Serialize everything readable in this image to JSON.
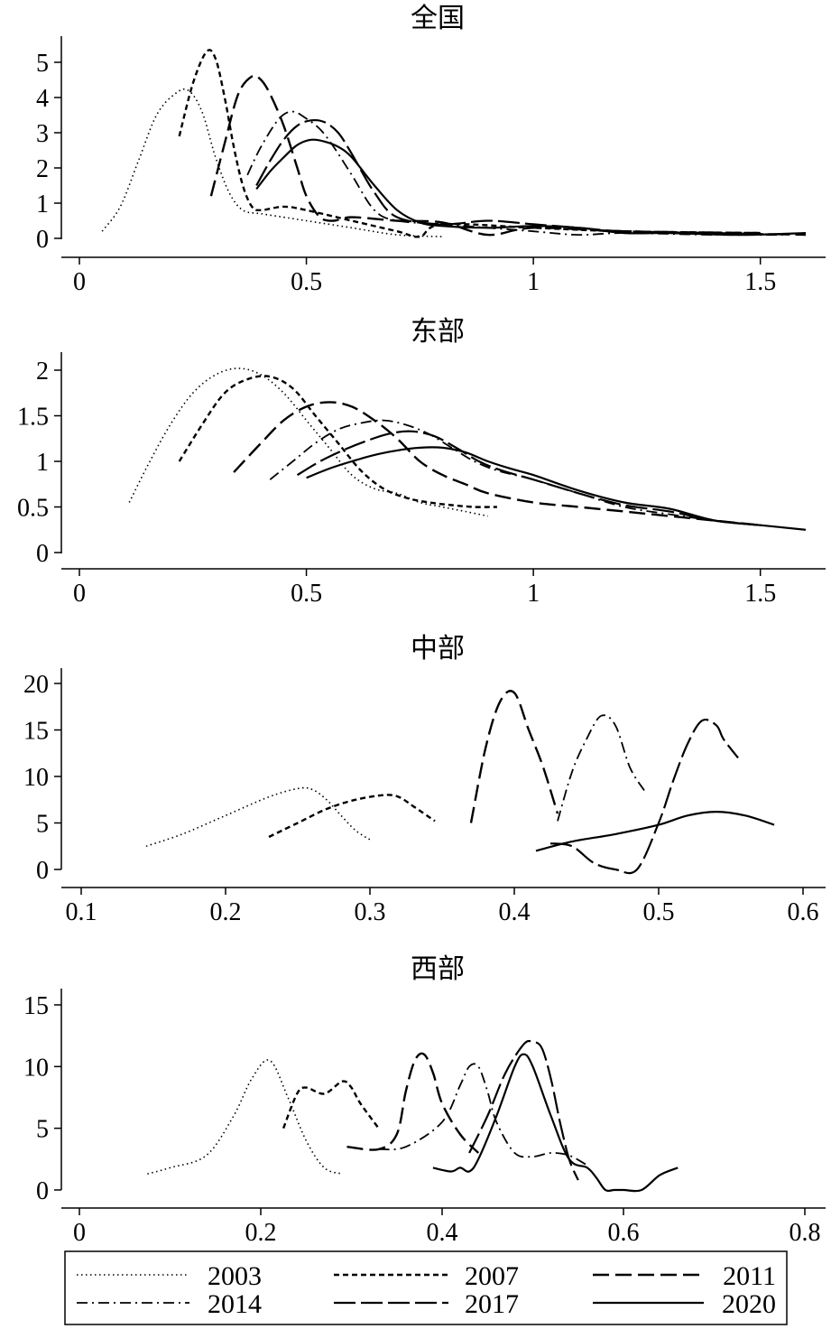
{
  "legend": {
    "entries": [
      "2003",
      "2007",
      "2011",
      "2014",
      "2017",
      "2020"
    ],
    "placement": "bottom"
  },
  "chart_data": [
    {
      "type": "line",
      "title": "全国",
      "xlim": [
        0,
        1.6
      ],
      "ylim": [
        0,
        5.5
      ],
      "xticks": [
        0,
        0.5,
        1,
        1.5
      ],
      "xtick_labels": [
        "0",
        "0.5",
        "1",
        "1.5"
      ],
      "yticks": [
        0,
        1,
        2,
        3,
        4,
        5
      ],
      "ytick_labels": [
        "0",
        "1",
        "2",
        "3",
        "4",
        "5"
      ],
      "series": [
        {
          "name": "2003",
          "x": [
            0.05,
            0.09,
            0.13,
            0.17,
            0.21,
            0.24,
            0.27,
            0.3,
            0.33,
            0.36,
            0.4,
            0.45,
            0.5,
            0.6,
            0.7,
            0.8
          ],
          "y": [
            0.2,
            0.9,
            2.2,
            3.5,
            4.1,
            4.2,
            3.6,
            2.3,
            1.3,
            0.8,
            0.7,
            0.6,
            0.5,
            0.3,
            0.1,
            0.05
          ]
        },
        {
          "name": "2007",
          "x": [
            0.22,
            0.25,
            0.28,
            0.3,
            0.32,
            0.34,
            0.36,
            0.38,
            0.4,
            0.45,
            0.5,
            0.6,
            0.7,
            0.75,
            0.8,
            1.0,
            1.2,
            1.5
          ],
          "y": [
            2.9,
            4.4,
            5.3,
            5.1,
            4.0,
            2.6,
            1.5,
            0.9,
            0.8,
            0.9,
            0.8,
            0.5,
            0.2,
            0.05,
            0.4,
            0.3,
            0.2,
            0.15
          ]
        },
        {
          "name": "2011",
          "x": [
            0.29,
            0.32,
            0.35,
            0.38,
            0.4,
            0.42,
            0.45,
            0.48,
            0.5,
            0.53,
            0.56,
            0.6,
            0.7,
            0.8,
            0.9,
            1.0,
            1.2,
            1.5
          ],
          "y": [
            1.2,
            2.7,
            4.1,
            4.6,
            4.5,
            4.1,
            3.2,
            2.0,
            1.2,
            0.6,
            0.5,
            0.6,
            0.5,
            0.45,
            0.1,
            0.3,
            0.2,
            0.15
          ]
        },
        {
          "name": "2014",
          "x": [
            0.37,
            0.4,
            0.44,
            0.47,
            0.5,
            0.53,
            0.56,
            0.6,
            0.65,
            0.7,
            0.8,
            0.9,
            1.0,
            1.1,
            1.2,
            1.4,
            1.55
          ],
          "y": [
            1.8,
            2.6,
            3.4,
            3.6,
            3.4,
            3.1,
            2.6,
            1.8,
            0.8,
            0.5,
            0.4,
            0.3,
            0.2,
            0.1,
            0.15,
            0.1,
            0.1
          ]
        },
        {
          "name": "2017",
          "x": [
            0.39,
            0.42,
            0.45,
            0.48,
            0.51,
            0.54,
            0.57,
            0.6,
            0.65,
            0.7,
            0.8,
            0.9,
            1.0,
            1.1,
            1.2,
            1.4,
            1.6
          ],
          "y": [
            1.5,
            2.2,
            2.8,
            3.2,
            3.35,
            3.3,
            3.0,
            2.4,
            1.3,
            0.6,
            0.4,
            0.5,
            0.4,
            0.3,
            0.2,
            0.15,
            0.1
          ]
        },
        {
          "name": "2020",
          "x": [
            0.39,
            0.42,
            0.45,
            0.48,
            0.51,
            0.54,
            0.57,
            0.6,
            0.65,
            0.7,
            0.75,
            0.8,
            0.9,
            1.0,
            1.1,
            1.2,
            1.3,
            1.45,
            1.6
          ],
          "y": [
            1.4,
            1.9,
            2.3,
            2.65,
            2.8,
            2.75,
            2.6,
            2.3,
            1.5,
            0.8,
            0.45,
            0.35,
            0.3,
            0.35,
            0.3,
            0.15,
            0.15,
            0.1,
            0.15
          ]
        }
      ]
    },
    {
      "type": "line",
      "title": "东部",
      "xlim": [
        0,
        1.6
      ],
      "ylim": [
        0,
        2.2
      ],
      "xticks": [
        0,
        0.5,
        1,
        1.5
      ],
      "xtick_labels": [
        "0",
        "0.5",
        "1",
        "1.5"
      ],
      "yticks": [
        0,
        0.5,
        1,
        1.5,
        2
      ],
      "ytick_labels": [
        "0",
        "0.5",
        "1",
        "1.5",
        "2"
      ],
      "series": [
        {
          "name": "2003",
          "x": [
            0.11,
            0.15,
            0.2,
            0.25,
            0.3,
            0.35,
            0.4,
            0.45,
            0.5,
            0.55,
            0.6,
            0.65,
            0.7,
            0.75,
            0.8,
            0.85,
            0.9
          ],
          "y": [
            0.55,
            0.95,
            1.4,
            1.75,
            1.95,
            2.02,
            1.95,
            1.75,
            1.45,
            1.15,
            0.85,
            0.7,
            0.65,
            0.55,
            0.5,
            0.45,
            0.4
          ]
        },
        {
          "name": "2007",
          "x": [
            0.22,
            0.27,
            0.32,
            0.37,
            0.42,
            0.47,
            0.52,
            0.57,
            0.62,
            0.67,
            0.72,
            0.77,
            0.82,
            0.87,
            0.92
          ],
          "y": [
            1.0,
            1.4,
            1.75,
            1.9,
            1.93,
            1.8,
            1.5,
            1.2,
            0.9,
            0.7,
            0.6,
            0.55,
            0.52,
            0.5,
            0.5
          ]
        },
        {
          "name": "2011",
          "x": [
            0.34,
            0.4,
            0.45,
            0.5,
            0.55,
            0.6,
            0.65,
            0.7,
            0.75,
            0.8,
            0.85,
            0.9,
            1.0,
            1.1,
            1.2,
            1.3,
            1.5
          ],
          "y": [
            0.88,
            1.2,
            1.45,
            1.6,
            1.65,
            1.6,
            1.45,
            1.25,
            1.0,
            0.85,
            0.75,
            0.65,
            0.55,
            0.5,
            0.45,
            0.4,
            0.3
          ]
        },
        {
          "name": "2014",
          "x": [
            0.42,
            0.47,
            0.52,
            0.57,
            0.62,
            0.67,
            0.72,
            0.77,
            0.82,
            0.87,
            0.92,
            1.0,
            1.1,
            1.2,
            1.3,
            1.4,
            1.5
          ],
          "y": [
            0.8,
            1.0,
            1.2,
            1.35,
            1.42,
            1.45,
            1.4,
            1.3,
            1.15,
            1.0,
            0.9,
            0.8,
            0.65,
            0.5,
            0.42,
            0.35,
            0.3
          ]
        },
        {
          "name": "2017",
          "x": [
            0.48,
            0.53,
            0.58,
            0.63,
            0.68,
            0.73,
            0.78,
            0.83,
            0.88,
            0.93,
            1.0,
            1.1,
            1.2,
            1.3,
            1.4,
            1.5
          ],
          "y": [
            0.85,
            1.0,
            1.12,
            1.22,
            1.3,
            1.33,
            1.28,
            1.15,
            1.0,
            0.9,
            0.8,
            0.65,
            0.52,
            0.45,
            0.35,
            0.3
          ]
        },
        {
          "name": "2020",
          "x": [
            0.5,
            0.55,
            0.6,
            0.65,
            0.7,
            0.75,
            0.8,
            0.85,
            0.9,
            0.95,
            1.0,
            1.1,
            1.2,
            1.3,
            1.4,
            1.5,
            1.6
          ],
          "y": [
            0.82,
            0.92,
            1.0,
            1.07,
            1.12,
            1.15,
            1.15,
            1.1,
            1.0,
            0.92,
            0.85,
            0.68,
            0.55,
            0.48,
            0.35,
            0.3,
            0.25
          ]
        }
      ]
    },
    {
      "type": "line",
      "title": "中部",
      "xlim": [
        0.1,
        0.62
      ],
      "ylim": [
        0,
        21
      ],
      "xticks": [
        0.1,
        0.2,
        0.3,
        0.4,
        0.5,
        0.6
      ],
      "xtick_labels": [
        "0.1",
        "0.2",
        "0.3",
        "0.4",
        "0.5",
        "0.6"
      ],
      "yticks": [
        0,
        5,
        10,
        15,
        20
      ],
      "ytick_labels": [
        "0",
        "5",
        "10",
        "15",
        "20"
      ],
      "series": [
        {
          "name": "2003",
          "x": [
            0.145,
            0.17,
            0.2,
            0.23,
            0.25,
            0.26,
            0.27,
            0.28,
            0.29,
            0.3
          ],
          "y": [
            2.5,
            3.8,
            5.8,
            7.8,
            8.7,
            8.6,
            7.5,
            5.8,
            4.2,
            3.2
          ]
        },
        {
          "name": "2007",
          "x": [
            0.23,
            0.25,
            0.27,
            0.29,
            0.31,
            0.32,
            0.33,
            0.345
          ],
          "y": [
            3.5,
            5.0,
            6.5,
            7.5,
            8.0,
            7.8,
            6.8,
            5.2
          ]
        },
        {
          "name": "2011",
          "x": [
            0.37,
            0.38,
            0.39,
            0.4,
            0.41,
            0.42,
            0.43
          ],
          "y": [
            5.0,
            13.0,
            18.0,
            19.0,
            15.0,
            11.0,
            6.0
          ]
        },
        {
          "name": "2014",
          "x": [
            0.43,
            0.44,
            0.45,
            0.46,
            0.47,
            0.48,
            0.49
          ],
          "y": [
            5.2,
            10.5,
            14.0,
            16.5,
            15.5,
            11.0,
            8.5
          ]
        },
        {
          "name": "2017",
          "x": [
            0.425,
            0.44,
            0.455,
            0.47,
            0.485,
            0.5,
            0.51,
            0.52,
            0.53,
            0.54,
            0.545,
            0.555
          ],
          "y": [
            2.8,
            2.5,
            0.7,
            0.0,
            0.0,
            5.0,
            9.5,
            13.5,
            16.0,
            15.5,
            14.0,
            12.0
          ]
        },
        {
          "name": "2020",
          "x": [
            0.415,
            0.44,
            0.47,
            0.5,
            0.52,
            0.54,
            0.56,
            0.58
          ],
          "y": [
            2.0,
            3.0,
            3.8,
            4.8,
            5.8,
            6.2,
            5.8,
            4.8
          ]
        }
      ]
    },
    {
      "type": "line",
      "title": "西部",
      "xlim": [
        0,
        0.8
      ],
      "ylim": [
        0,
        16
      ],
      "xticks": [
        0,
        0.2,
        0.4,
        0.6,
        0.8
      ],
      "xtick_labels": [
        "0",
        "0.2",
        "0.4",
        "0.6",
        "0.8"
      ],
      "yticks": [
        0,
        5,
        10,
        15
      ],
      "ytick_labels": [
        "0",
        "5",
        "10",
        "15"
      ],
      "series": [
        {
          "name": "2003",
          "x": [
            0.075,
            0.1,
            0.14,
            0.17,
            0.19,
            0.21,
            0.23,
            0.25,
            0.27,
            0.29
          ],
          "y": [
            1.3,
            1.8,
            2.8,
            6.0,
            9.0,
            10.5,
            7.5,
            4.0,
            1.8,
            1.3
          ]
        },
        {
          "name": "2007",
          "x": [
            0.225,
            0.24,
            0.25,
            0.27,
            0.29,
            0.3,
            0.31,
            0.33
          ],
          "y": [
            5.0,
            7.8,
            8.3,
            7.8,
            8.8,
            8.3,
            7.0,
            5.0
          ]
        },
        {
          "name": "2011",
          "x": [
            0.295,
            0.33,
            0.35,
            0.36,
            0.37,
            0.38,
            0.39,
            0.4,
            0.42,
            0.44
          ],
          "y": [
            3.5,
            3.3,
            4.5,
            8.0,
            10.5,
            11.0,
            9.5,
            7.0,
            4.5,
            3.0
          ]
        },
        {
          "name": "2014",
          "x": [
            0.33,
            0.36,
            0.4,
            0.42,
            0.43,
            0.44,
            0.45,
            0.46,
            0.48,
            0.5,
            0.52,
            0.54,
            0.56
          ],
          "y": [
            3.3,
            3.5,
            5.5,
            8.5,
            10.0,
            10.0,
            8.0,
            5.5,
            3.0,
            2.7,
            3.0,
            2.8,
            2.0
          ]
        },
        {
          "name": "2017",
          "x": [
            0.43,
            0.45,
            0.47,
            0.49,
            0.5,
            0.51,
            0.52,
            0.53,
            0.54,
            0.55
          ],
          "y": [
            3.0,
            6.0,
            9.5,
            11.8,
            12.0,
            11.5,
            9.0,
            5.5,
            2.5,
            0.8
          ]
        },
        {
          "name": "2020",
          "x": [
            0.39,
            0.41,
            0.42,
            0.43,
            0.44,
            0.46,
            0.48,
            0.49,
            0.5,
            0.52,
            0.54,
            0.56,
            0.57,
            0.58,
            0.59,
            0.6,
            0.62,
            0.64,
            0.66
          ],
          "y": [
            1.8,
            1.5,
            1.8,
            1.5,
            2.5,
            6.0,
            10.0,
            11.0,
            10.0,
            6.0,
            2.5,
            1.8,
            1.0,
            0.0,
            0.0,
            0.0,
            0.0,
            1.2,
            1.8
          ]
        }
      ]
    }
  ]
}
